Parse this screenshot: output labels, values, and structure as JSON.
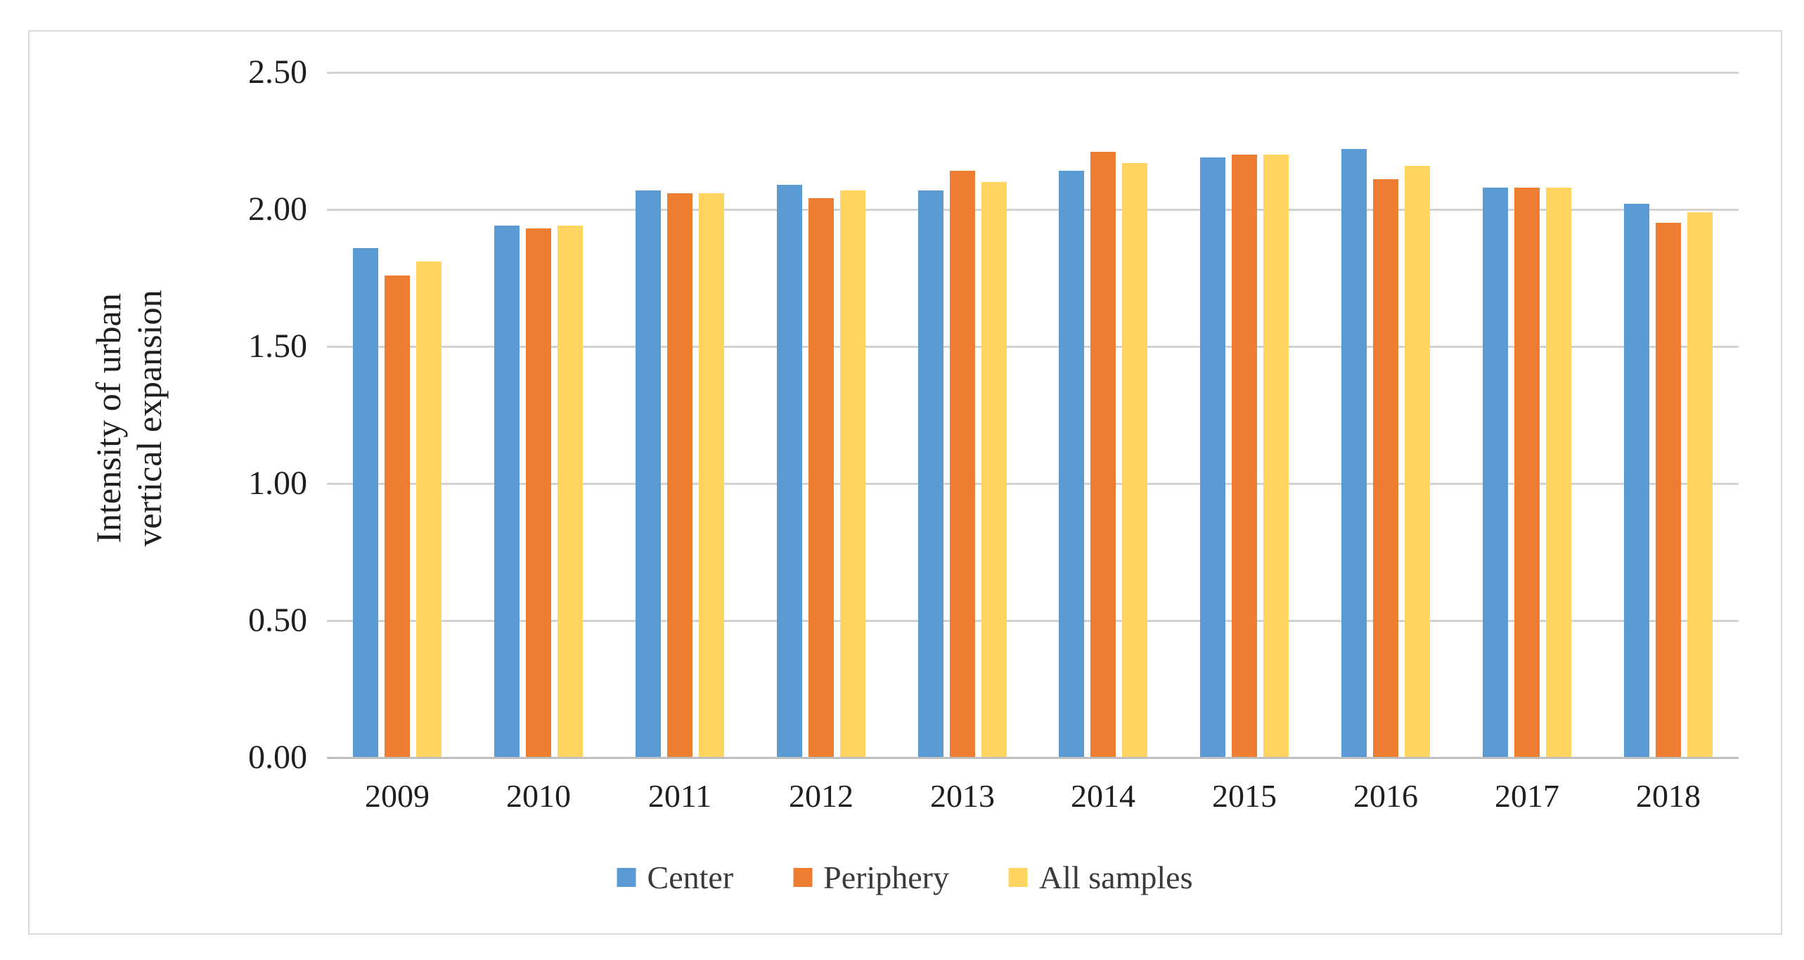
{
  "chart_data": {
    "type": "bar",
    "title": "",
    "xlabel": "",
    "ylabel": "Intensity of urban vertical expansion",
    "ylabel_lines": [
      "Intensity of urban",
      "vertical expansion"
    ],
    "categories": [
      "2009",
      "2010",
      "2011",
      "2012",
      "2013",
      "2014",
      "2015",
      "2016",
      "2017",
      "2018"
    ],
    "series": [
      {
        "name": "Center",
        "color": "#5B9BD5",
        "values": [
          1.86,
          1.94,
          2.07,
          2.09,
          2.07,
          2.14,
          2.19,
          2.22,
          2.08,
          2.02
        ]
      },
      {
        "name": "Periphery",
        "color": "#ED7D31",
        "values": [
          1.76,
          1.93,
          2.06,
          2.04,
          2.14,
          2.21,
          2.2,
          2.11,
          2.08,
          1.95
        ]
      },
      {
        "name": "All samples",
        "color": "#FFD45F",
        "values": [
          1.81,
          1.94,
          2.06,
          2.07,
          2.1,
          2.17,
          2.2,
          2.16,
          2.08,
          1.99
        ]
      }
    ],
    "y_tick_labels": [
      "0.00",
      "0.50",
      "1.00",
      "1.50",
      "2.00",
      "2.50"
    ],
    "y_tick_values": [
      0,
      0.5,
      1.0,
      1.5,
      2.0,
      2.5
    ],
    "ylim": [
      0,
      2.5
    ],
    "grid": true,
    "legend_position": "bottom",
    "gridline_color": "#D2D2D2",
    "axis_line_color": "#BFBFBF",
    "text_color": "#1f1f1f",
    "frame_border_color": "#D9D9D9"
  }
}
